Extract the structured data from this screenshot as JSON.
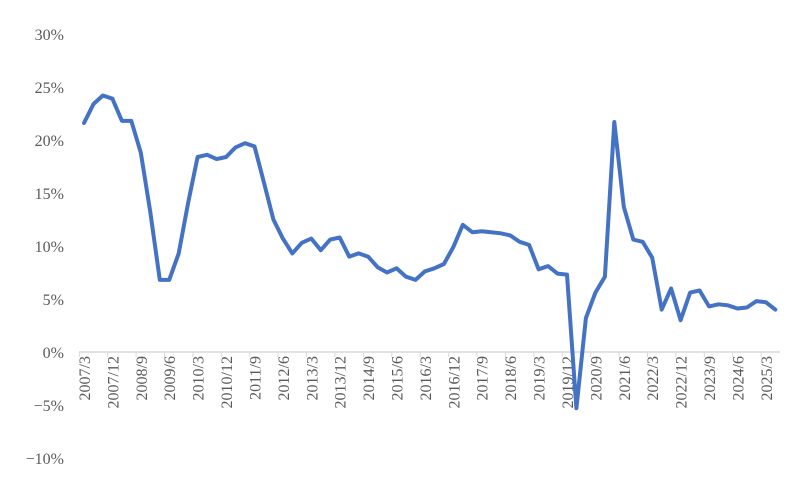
{
  "chart_data": {
    "type": "line",
    "title": "",
    "xlabel": "",
    "ylabel": "",
    "ylim": [
      -10,
      30
    ],
    "yticks": [
      -10,
      -5,
      0,
      5,
      10,
      15,
      20,
      25,
      30
    ],
    "ytick_labels": [
      "−10%",
      "−5%",
      "0%",
      "5%",
      "10%",
      "15%",
      "20%",
      "25%",
      "30%"
    ],
    "grid": false,
    "legend": "none",
    "line_color": "#4472C4",
    "categories": [
      "2007/3",
      "2007/6",
      "2007/9",
      "2007/12",
      "2008/3",
      "2008/6",
      "2008/9",
      "2008/12",
      "2009/3",
      "2009/6",
      "2009/9",
      "2009/12",
      "2010/3",
      "2010/6",
      "2010/9",
      "2010/12",
      "2011/3",
      "2011/6",
      "2011/9",
      "2011/12",
      "2012/3",
      "2012/6",
      "2012/9",
      "2012/12",
      "2013/3",
      "2013/6",
      "2013/9",
      "2013/12",
      "2014/3",
      "2014/6",
      "2014/9",
      "2014/12",
      "2015/3",
      "2015/6",
      "2015/9",
      "2015/12",
      "2016/3",
      "2016/6",
      "2016/9",
      "2016/12",
      "2017/3",
      "2017/6",
      "2017/9",
      "2017/12",
      "2018/3",
      "2018/6",
      "2018/9",
      "2018/12",
      "2019/3",
      "2019/6",
      "2019/9",
      "2019/12",
      "2020/3",
      "2020/6",
      "2020/9",
      "2020/12",
      "2021/3",
      "2021/6",
      "2021/9",
      "2021/12",
      "2022/3",
      "2022/6",
      "2022/9",
      "2022/12",
      "2023/3",
      "2023/6",
      "2023/9",
      "2023/12",
      "2024/3",
      "2024/6",
      "2024/9",
      "2024/12",
      "2025/3",
      "2025/6"
    ],
    "xtick_labels": [
      "2007/3",
      "2007/12",
      "2008/9",
      "2009/6",
      "2010/3",
      "2010/12",
      "2011/9",
      "2012/6",
      "2013/3",
      "2013/12",
      "2014/9",
      "2015/6",
      "2016/3",
      "2016/12",
      "2017/9",
      "2018/6",
      "2019/3",
      "2019/12",
      "2020/9",
      "2021/6",
      "2022/3",
      "2022/12",
      "2023/9",
      "2024/6",
      "2025/3"
    ],
    "series": [
      {
        "values": [
          21.6,
          23.4,
          24.2,
          23.9,
          21.8,
          21.8,
          18.8,
          13.2,
          6.8,
          6.8,
          9.3,
          14.1,
          18.4,
          18.6,
          18.2,
          18.4,
          19.3,
          19.7,
          19.4,
          16.0,
          12.5,
          10.7,
          9.3,
          10.3,
          10.7,
          9.6,
          10.6,
          10.8,
          9.0,
          9.3,
          9.0,
          8.0,
          7.5,
          7.9,
          7.1,
          6.8,
          7.6,
          7.9,
          8.3,
          9.9,
          12.0,
          11.3,
          11.4,
          11.3,
          11.2,
          11.0,
          10.4,
          10.1,
          7.8,
          8.1,
          7.4,
          7.3,
          -5.3,
          3.2,
          5.6,
          7.1,
          21.7,
          13.7,
          10.6,
          10.4,
          8.9,
          4.0,
          6.0,
          3.0,
          5.6,
          5.8,
          4.3,
          4.5,
          4.4,
          4.1,
          4.2,
          4.8,
          4.7,
          4.0
        ]
      }
    ]
  }
}
